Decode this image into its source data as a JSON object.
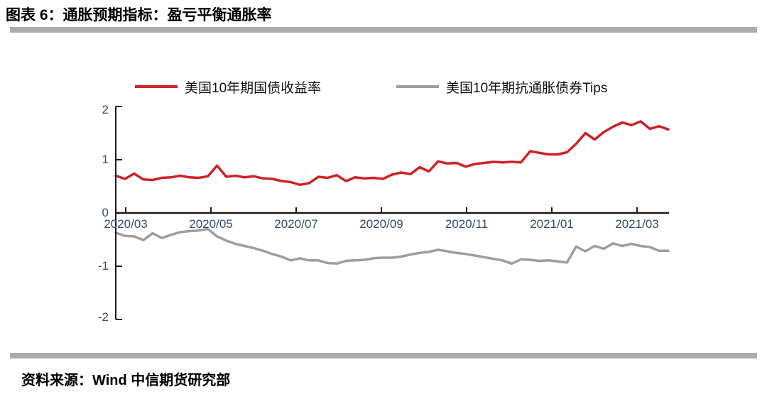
{
  "page": {
    "title": "图表 6：通胀预期指标：盈亏平衡通胀率",
    "source": "资料来源：Wind 中信期货研究部"
  },
  "colors": {
    "accent_red": "#CF2128",
    "accent_gray": "#9E9E9E",
    "divider_gray": "#ACACAC",
    "axis_black": "#1A1A1A",
    "tick_text_blue": "#344D66"
  },
  "chart_data": {
    "type": "line",
    "title": "图表 6：通胀预期指标：盈亏平衡通胀率",
    "xlabel": "",
    "ylabel": "",
    "ylim": [
      -2,
      2
    ],
    "grid": false,
    "legend_position": "top",
    "x_tick_labels": [
      "2020/03",
      "2020/05",
      "2020/07",
      "2020/09",
      "2020/11",
      "2021/01",
      "2021/03"
    ],
    "y_tick_labels": [
      "2",
      "1",
      "0",
      "-1",
      "-2"
    ],
    "y_tick_values": [
      2,
      1,
      0,
      -1,
      -2
    ],
    "series": [
      {
        "name": "美国10年期国债收益率",
        "color": "#CF2128",
        "values": [
          0.7,
          0.64,
          0.74,
          0.63,
          0.62,
          0.66,
          0.67,
          0.7,
          0.67,
          0.66,
          0.69,
          0.89,
          0.68,
          0.7,
          0.67,
          0.69,
          0.65,
          0.64,
          0.6,
          0.58,
          0.53,
          0.56,
          0.68,
          0.66,
          0.71,
          0.6,
          0.67,
          0.65,
          0.66,
          0.64,
          0.72,
          0.76,
          0.73,
          0.86,
          0.78,
          0.97,
          0.93,
          0.94,
          0.87,
          0.92,
          0.94,
          0.96,
          0.95,
          0.96,
          0.95,
          1.16,
          1.13,
          1.1,
          1.1,
          1.14,
          1.3,
          1.5,
          1.38,
          1.52,
          1.62,
          1.7,
          1.65,
          1.72,
          1.58,
          1.63,
          1.57
        ]
      },
      {
        "name": "美国10年期抗通胀债券Tips",
        "color": "#9E9E9E",
        "values": [
          -0.37,
          -0.43,
          -0.44,
          -0.51,
          -0.38,
          -0.47,
          -0.41,
          -0.36,
          -0.34,
          -0.33,
          -0.3,
          -0.44,
          -0.52,
          -0.58,
          -0.62,
          -0.66,
          -0.71,
          -0.77,
          -0.82,
          -0.89,
          -0.85,
          -0.89,
          -0.89,
          -0.94,
          -0.95,
          -0.9,
          -0.89,
          -0.88,
          -0.85,
          -0.84,
          -0.84,
          -0.82,
          -0.78,
          -0.75,
          -0.73,
          -0.69,
          -0.72,
          -0.75,
          -0.77,
          -0.8,
          -0.83,
          -0.86,
          -0.89,
          -0.95,
          -0.87,
          -0.88,
          -0.9,
          -0.89,
          -0.91,
          -0.93,
          -0.63,
          -0.72,
          -0.62,
          -0.67,
          -0.57,
          -0.62,
          -0.58,
          -0.62,
          -0.64,
          -0.71,
          -0.71
        ]
      }
    ]
  }
}
